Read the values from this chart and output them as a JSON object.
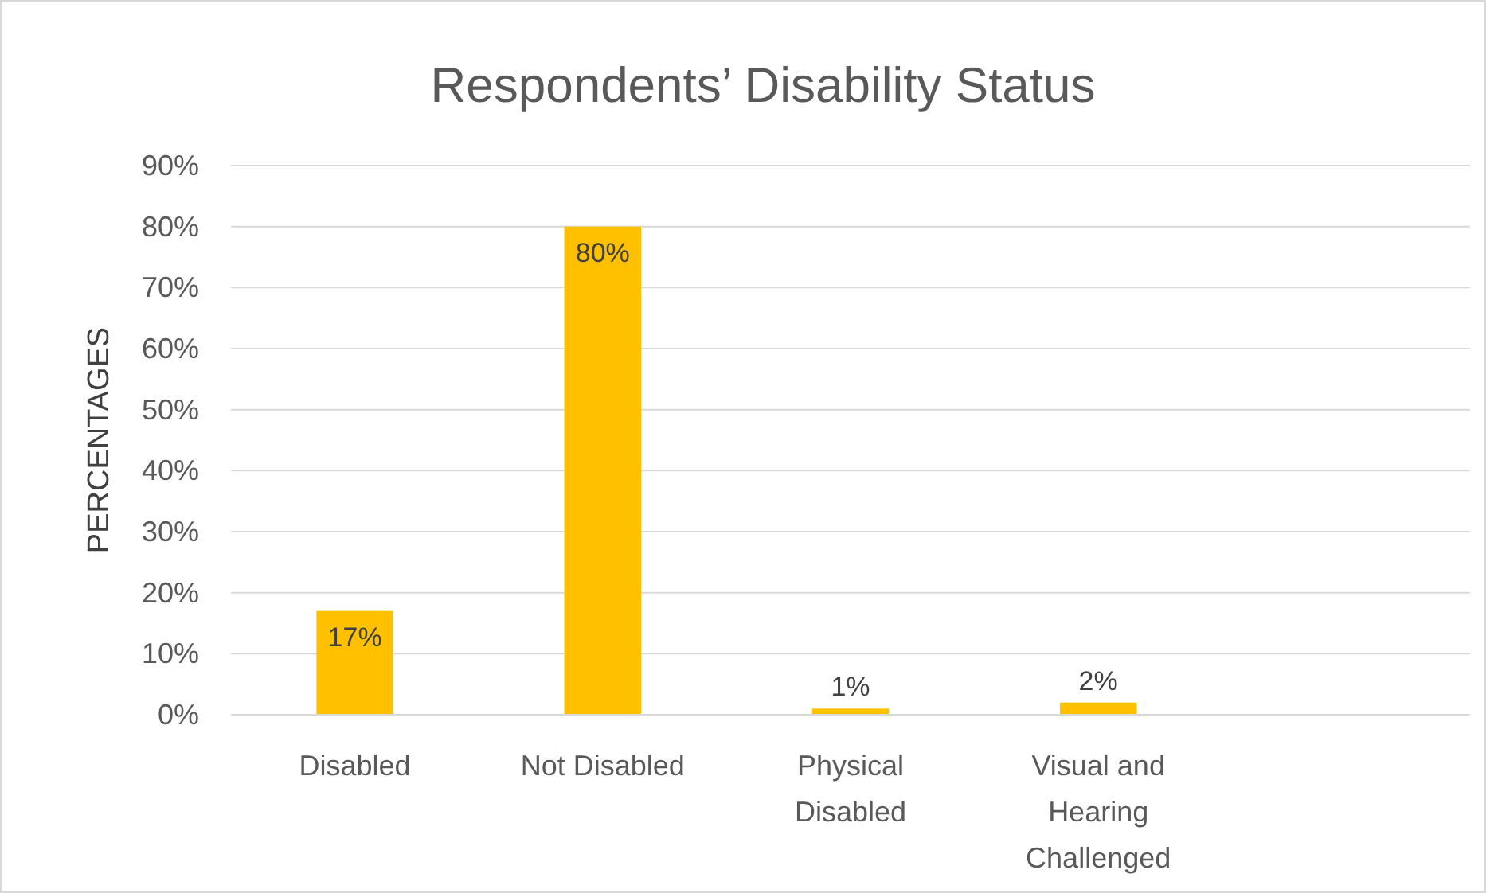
{
  "chart_data": {
    "type": "bar",
    "title": "Respondents’ Disability Status",
    "ylabel": "PERCENTAGES",
    "categories": [
      "Disabled",
      "Not Disabled",
      "Physical Disabled",
      "Visual and Hearing Challenged",
      null
    ],
    "values": [
      17,
      80,
      1,
      2,
      null
    ],
    "value_labels": [
      "17%",
      "80%",
      "1%",
      "2%",
      null
    ],
    "color": "#ffc000",
    "ylim": [
      0,
      90
    ],
    "yticks": [
      {
        "value": 0,
        "label": "0%"
      },
      {
        "value": 10,
        "label": "10%"
      },
      {
        "value": 20,
        "label": "20%"
      },
      {
        "value": 30,
        "label": "30%"
      },
      {
        "value": 40,
        "label": "40%"
      },
      {
        "value": 50,
        "label": "50%"
      },
      {
        "value": 60,
        "label": "60%"
      },
      {
        "value": 70,
        "label": "70%"
      },
      {
        "value": 80,
        "label": "80%"
      },
      {
        "value": 90,
        "label": "90%"
      }
    ],
    "grid": "y"
  }
}
